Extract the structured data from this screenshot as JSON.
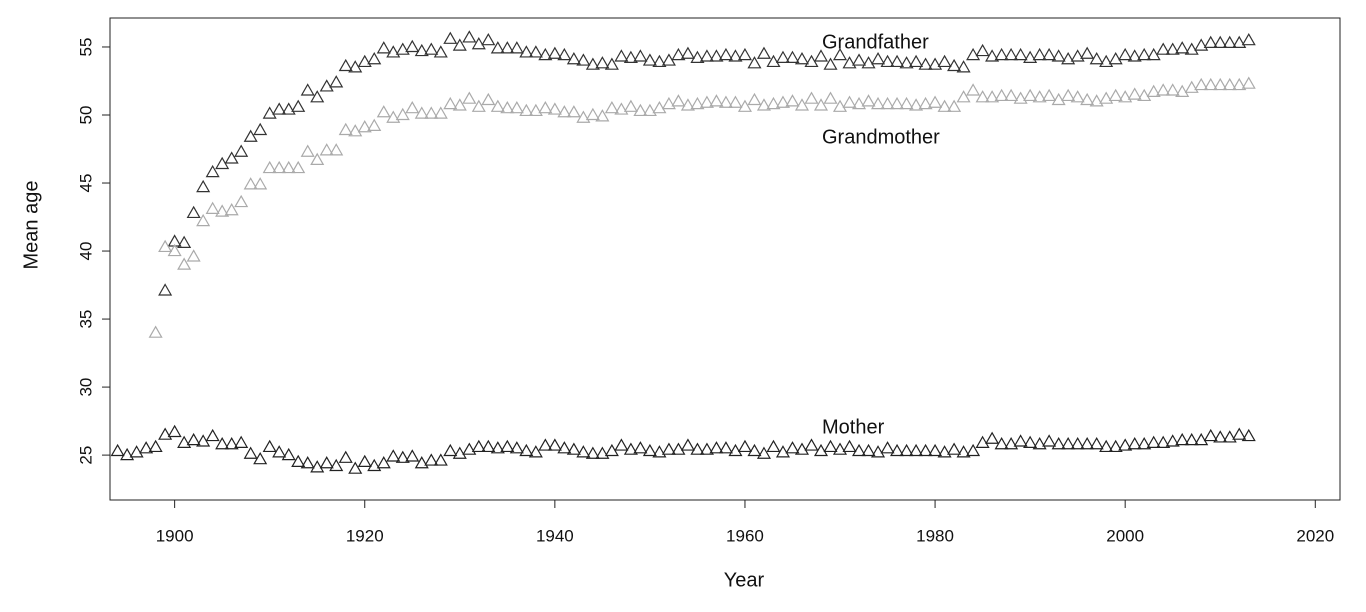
{
  "chart_data": {
    "type": "scatter",
    "x_label": "Year",
    "y_label": "Mean age",
    "xlim": [
      1893.2,
      2022.6
    ],
    "ylim": [
      21.7,
      57.13
    ],
    "xticks": [
      1900,
      1920,
      1940,
      1960,
      1980,
      2000,
      2020
    ],
    "yticks": [
      25,
      30,
      35,
      40,
      45,
      50,
      55
    ],
    "grid": false,
    "marker": "open-triangle",
    "x": [
      1894,
      1895,
      1896,
      1897,
      1898,
      1899,
      1900,
      1901,
      1902,
      1903,
      1904,
      1905,
      1906,
      1907,
      1908,
      1909,
      1910,
      1911,
      1912,
      1913,
      1914,
      1915,
      1916,
      1917,
      1918,
      1919,
      1920,
      1921,
      1922,
      1923,
      1924,
      1925,
      1926,
      1927,
      1928,
      1929,
      1930,
      1931,
      1932,
      1933,
      1934,
      1935,
      1936,
      1937,
      1938,
      1939,
      1940,
      1941,
      1942,
      1943,
      1944,
      1945,
      1946,
      1947,
      1948,
      1949,
      1950,
      1951,
      1952,
      1953,
      1954,
      1955,
      1956,
      1957,
      1958,
      1959,
      1960,
      1961,
      1962,
      1963,
      1964,
      1965,
      1966,
      1967,
      1968,
      1969,
      1970,
      1971,
      1972,
      1973,
      1974,
      1975,
      1976,
      1977,
      1978,
      1979,
      1980,
      1981,
      1982,
      1983,
      1984,
      1985,
      1986,
      1987,
      1988,
      1989,
      1990,
      1991,
      1992,
      1993,
      1994,
      1995,
      1996,
      1997,
      1998,
      1999,
      2000,
      2001,
      2002,
      2003,
      2004,
      2005,
      2006,
      2007,
      2008,
      2009,
      2010,
      2011,
      2012,
      2013
    ],
    "series": [
      {
        "name": "Grandfather",
        "color": "#333333",
        "values": [
          null,
          null,
          null,
          null,
          null,
          37.1,
          40.7,
          40.6,
          42.8,
          44.7,
          45.8,
          46.4,
          46.8,
          47.3,
          48.4,
          48.9,
          50.1,
          50.4,
          50.4,
          50.6,
          51.8,
          51.3,
          52.1,
          52.4,
          53.6,
          53.5,
          53.9,
          54.1,
          54.9,
          54.6,
          54.8,
          55.0,
          54.7,
          54.8,
          54.6,
          55.6,
          55.1,
          55.7,
          55.2,
          55.5,
          54.9,
          54.9,
          54.9,
          54.6,
          54.6,
          54.4,
          54.5,
          54.4,
          54.1,
          54.0,
          53.7,
          53.8,
          53.7,
          54.3,
          54.2,
          54.3,
          54.0,
          53.9,
          54.0,
          54.4,
          54.5,
          54.2,
          54.3,
          54.3,
          54.4,
          54.3,
          54.4,
          53.8,
          54.5,
          53.9,
          54.2,
          54.2,
          54.1,
          53.9,
          54.3,
          53.7,
          54.4,
          53.8,
          54.0,
          53.8,
          54.1,
          53.9,
          53.9,
          53.8,
          53.9,
          53.7,
          53.7,
          53.9,
          53.6,
          53.5,
          54.4,
          54.7,
          54.3,
          54.4,
          54.4,
          54.4,
          54.2,
          54.4,
          54.4,
          54.3,
          54.1,
          54.3,
          54.5,
          54.1,
          53.9,
          54.1,
          54.4,
          54.3,
          54.4,
          54.4,
          54.8,
          54.8,
          54.9,
          54.8,
          55.1,
          55.3,
          55.3,
          55.3,
          55.3,
          55.5
        ]
      },
      {
        "name": "Grandmother",
        "color": "#aaaaaa",
        "values": [
          null,
          null,
          null,
          null,
          34.0,
          40.3,
          40.0,
          39.0,
          39.6,
          42.2,
          43.1,
          42.9,
          43.0,
          43.6,
          44.9,
          44.9,
          46.1,
          46.1,
          46.1,
          46.1,
          47.3,
          46.7,
          47.4,
          47.4,
          48.9,
          48.8,
          49.1,
          49.2,
          50.2,
          49.8,
          50.0,
          50.5,
          50.1,
          50.1,
          50.1,
          50.8,
          50.7,
          51.2,
          50.6,
          51.1,
          50.6,
          50.5,
          50.5,
          50.3,
          50.3,
          50.5,
          50.4,
          50.2,
          50.2,
          49.8,
          50.0,
          49.9,
          50.5,
          50.4,
          50.6,
          50.3,
          50.3,
          50.5,
          50.8,
          51.0,
          50.7,
          50.8,
          50.9,
          51.0,
          50.9,
          50.9,
          50.6,
          51.1,
          50.7,
          50.8,
          50.9,
          51.0,
          50.7,
          51.2,
          50.7,
          51.2,
          50.6,
          50.9,
          50.8,
          51.0,
          50.8,
          50.8,
          50.8,
          50.8,
          50.7,
          50.8,
          50.9,
          50.6,
          50.6,
          51.3,
          51.8,
          51.3,
          51.3,
          51.4,
          51.4,
          51.2,
          51.4,
          51.3,
          51.4,
          51.1,
          51.4,
          51.3,
          51.1,
          51.0,
          51.2,
          51.4,
          51.3,
          51.5,
          51.4,
          51.7,
          51.8,
          51.8,
          51.7,
          52.0,
          52.2,
          52.2,
          52.2,
          52.2,
          52.2,
          52.3
        ]
      },
      {
        "name": "Mother",
        "color": "#222222",
        "values": [
          25.3,
          25.0,
          25.2,
          25.5,
          25.6,
          26.5,
          26.7,
          25.9,
          26.1,
          26.0,
          26.4,
          25.8,
          25.8,
          25.9,
          25.1,
          24.7,
          25.6,
          25.2,
          25.0,
          24.5,
          24.4,
          24.1,
          24.4,
          24.2,
          24.8,
          24.0,
          24.5,
          24.2,
          24.4,
          24.9,
          24.8,
          24.9,
          24.4,
          24.6,
          24.6,
          25.3,
          25.1,
          25.4,
          25.6,
          25.6,
          25.5,
          25.6,
          25.5,
          25.3,
          25.2,
          25.7,
          25.7,
          25.5,
          25.4,
          25.2,
          25.1,
          25.1,
          25.3,
          25.7,
          25.4,
          25.5,
          25.3,
          25.2,
          25.4,
          25.4,
          25.7,
          25.4,
          25.4,
          25.5,
          25.5,
          25.3,
          25.6,
          25.3,
          25.1,
          25.6,
          25.2,
          25.5,
          25.4,
          25.7,
          25.3,
          25.6,
          25.4,
          25.6,
          25.3,
          25.3,
          25.2,
          25.5,
          25.3,
          25.3,
          25.3,
          25.3,
          25.3,
          25.2,
          25.4,
          25.2,
          25.3,
          25.9,
          26.2,
          25.8,
          25.8,
          26.0,
          25.9,
          25.8,
          26.0,
          25.8,
          25.8,
          25.8,
          25.8,
          25.8,
          25.6,
          25.6,
          25.7,
          25.8,
          25.8,
          25.9,
          25.9,
          26.0,
          26.1,
          26.1,
          26.1,
          26.4,
          26.3,
          26.3,
          26.5,
          26.4
        ]
      }
    ]
  }
}
